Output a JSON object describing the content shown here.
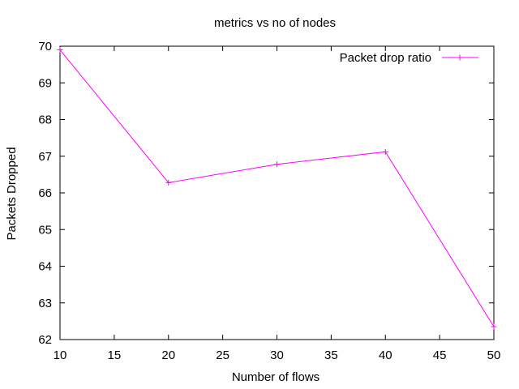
{
  "chart_data": {
    "type": "line",
    "title": "metrics vs no of nodes",
    "xlabel": "Number of flows",
    "ylabel": "Packets Dropped",
    "xlim": [
      10,
      50
    ],
    "ylim": [
      62,
      70
    ],
    "xticks": [
      10,
      15,
      20,
      25,
      30,
      35,
      40,
      45,
      50
    ],
    "yticks": [
      62,
      63,
      64,
      65,
      66,
      67,
      68,
      69,
      70
    ],
    "grid": false,
    "legend_position": "top-right",
    "series": [
      {
        "name": "Packet drop ratio",
        "color": "#ff00ff",
        "marker": "plus",
        "x": [
          10,
          20,
          30,
          40,
          50
        ],
        "y": [
          69.9,
          66.28,
          66.78,
          67.12,
          62.35
        ]
      }
    ]
  }
}
